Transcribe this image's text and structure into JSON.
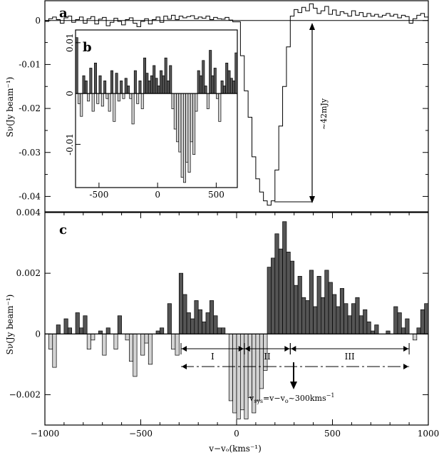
{
  "chart_data": [
    {
      "panel": "a",
      "type": "line",
      "style": "step",
      "xlim": [
        -1000,
        1000
      ],
      "ylim": [
        -0.042,
        0.004
      ],
      "yticks": [
        0,
        -0.01,
        -0.02,
        -0.03,
        -0.04
      ],
      "ytick_labels": [
        "0",
        "-0.01",
        "-0.02",
        "-0.03",
        "-0.04"
      ],
      "ylabel": "Sν(Jy beam⁻¹)",
      "x": [
        -1000,
        -980,
        -960,
        -940,
        -920,
        -900,
        -880,
        -860,
        -840,
        -820,
        -800,
        -780,
        -760,
        -740,
        -720,
        -700,
        -680,
        -660,
        -640,
        -620,
        -600,
        -580,
        -560,
        -540,
        -520,
        -500,
        -480,
        -460,
        -440,
        -420,
        -400,
        -380,
        -360,
        -340,
        -320,
        -300,
        -280,
        -260,
        -240,
        -220,
        -200,
        -180,
        -160,
        -140,
        -120,
        -100,
        -80,
        -60,
        -40,
        -20,
        0,
        20,
        40,
        60,
        80,
        100,
        120,
        140,
        160,
        180,
        200,
        220,
        240,
        260,
        280,
        300,
        320,
        340,
        360,
        380,
        400,
        420,
        440,
        460,
        480,
        500,
        520,
        540,
        560,
        580,
        600,
        620,
        640,
        660,
        680,
        700,
        720,
        740,
        760,
        780,
        800,
        820,
        840,
        860,
        880,
        900,
        920,
        940,
        960,
        980
      ],
      "y": [
        -0.0002,
        0.0004,
        0.0008,
        0.0002,
        -0.0006,
        0.0006,
        0.001,
        -0.0004,
        0.0002,
        0.0008,
        -0.0006,
        0.0004,
        0.0009,
        -0.0008,
        0.0003,
        0.0007,
        -0.0012,
        -0.0004,
        0.0005,
        -0.0002,
        -0.001,
        0.0002,
        0.0006,
        -0.0006,
        -0.0014,
        -0.0002,
        0.0004,
        -0.0008,
        0.0002,
        0.0008,
        -0.0004,
        0.001,
        0.0003,
        0.0012,
        0.0002,
        0.001,
        0.0006,
        0.0009,
        0.0011,
        0.0004,
        0.0008,
        0.0005,
        0.001,
        0.0002,
        0.0007,
        0.0004,
        0.0003,
        0.0007,
        0.0001,
        -0.0003,
        -0.0003,
        -0.008,
        -0.016,
        -0.022,
        -0.031,
        -0.036,
        -0.039,
        -0.041,
        -0.042,
        -0.041,
        -0.034,
        -0.024,
        -0.015,
        -0.006,
        0.001,
        0.0025,
        0.0018,
        0.003,
        0.0022,
        0.0038,
        0.0028,
        0.0016,
        0.0022,
        0.0032,
        0.0014,
        0.0024,
        0.0012,
        0.002,
        0.0016,
        0.001,
        0.0022,
        0.0012,
        0.0018,
        0.0009,
        0.0016,
        0.001,
        0.0014,
        0.0008,
        0.0012,
        0.0016,
        0.001,
        0.0014,
        0.0006,
        0.0012,
        0.0009,
        -0.0006,
        0.0004,
        0.0012,
        0.0016,
        0.0008
      ],
      "annotations": [
        {
          "text": "~42mJy"
        }
      ]
    },
    {
      "panel": "b",
      "type": "bar",
      "style": "step-filled",
      "xlim": [
        -700,
        680
      ],
      "ylim": [
        -0.0185,
        0.0125
      ],
      "xticks": [
        -500,
        0,
        500
      ],
      "xtick_labels": [
        "-500",
        "0",
        "500"
      ],
      "yticks": [
        0.01,
        0,
        -0.01
      ],
      "ytick_labels": [
        "0.01",
        "0",
        "-0.01"
      ],
      "x": [
        -700,
        -680,
        -660,
        -640,
        -620,
        -600,
        -580,
        -560,
        -540,
        -520,
        -500,
        -480,
        -460,
        -440,
        -420,
        -400,
        -380,
        -360,
        -340,
        -320,
        -300,
        -280,
        -260,
        -240,
        -220,
        -200,
        -180,
        -160,
        -140,
        -120,
        -100,
        -80,
        -60,
        -40,
        -20,
        0,
        20,
        40,
        60,
        80,
        100,
        120,
        140,
        160,
        180,
        200,
        220,
        240,
        260,
        280,
        300,
        320,
        340,
        360,
        380,
        400,
        420,
        440,
        460,
        480,
        500,
        520,
        540,
        560,
        580,
        600,
        620,
        640,
        660
      ],
      "y": [
        0.011,
        -0.002,
        -0.0045,
        0.0035,
        0.0025,
        -0.0015,
        0.005,
        -0.0035,
        0.006,
        -0.002,
        0.0035,
        -0.0025,
        0.0025,
        -0.001,
        -0.0035,
        0.0045,
        -0.0055,
        0.004,
        -0.0015,
        0.0025,
        -0.001,
        0.003,
        0.0015,
        -0.001,
        -0.006,
        0.0045,
        -0.002,
        0.0025,
        -0.003,
        0.007,
        0.004,
        0.0025,
        0.0035,
        0.0055,
        0.003,
        0.0015,
        0.0045,
        0.0035,
        0.007,
        0.0025,
        0.0055,
        -0.003,
        -0.007,
        -0.0095,
        -0.0115,
        -0.0165,
        -0.0175,
        -0.0135,
        -0.0155,
        -0.0095,
        -0.012,
        -0.0035,
        0.0045,
        0.0035,
        0.0065,
        0.0015,
        -0.003,
        0.0085,
        0.0035,
        0.005,
        -0.001,
        -0.0055,
        0.0025,
        0.0015,
        0.006,
        0.0045,
        0.003,
        0.0025,
        0.008
      ]
    },
    {
      "panel": "c",
      "type": "bar",
      "style": "step-filled",
      "xlim": [
        -1000,
        1000
      ],
      "ylim": [
        -0.003,
        0.004
      ],
      "xticks": [
        -1000,
        -500,
        0,
        500,
        1000
      ],
      "xtick_labels": [
        "−1000",
        "−500",
        "0",
        "500",
        "1000"
      ],
      "yticks": [
        0.004,
        0.002,
        0,
        -0.002
      ],
      "ytick_labels": [
        "0.004",
        "0.002",
        "0",
        "−0.002"
      ],
      "xlabel": "v−vₒ(kms⁻¹)",
      "ylabel": "Sν(Jy beam⁻¹)",
      "x": [
        -980,
        -960,
        -940,
        -920,
        -900,
        -880,
        -860,
        -840,
        -820,
        -800,
        -780,
        -760,
        -740,
        -720,
        -700,
        -680,
        -660,
        -640,
        -620,
        -600,
        -580,
        -560,
        -540,
        -520,
        -500,
        -480,
        -460,
        -440,
        -420,
        -400,
        -380,
        -360,
        -340,
        -320,
        -300,
        -280,
        -260,
        -240,
        -220,
        -200,
        -180,
        -160,
        -140,
        -120,
        -100,
        -80,
        -60,
        -40,
        -20,
        0,
        20,
        40,
        60,
        80,
        100,
        120,
        140,
        160,
        180,
        200,
        220,
        240,
        260,
        280,
        300,
        320,
        340,
        360,
        380,
        400,
        420,
        440,
        460,
        480,
        500,
        520,
        540,
        560,
        580,
        600,
        620,
        640,
        660,
        680,
        700,
        720,
        740,
        760,
        780,
        800,
        820,
        840,
        860,
        880,
        900,
        920,
        940,
        960,
        980
      ],
      "y": [
        -0.0005,
        -0.0011,
        0.0003,
        0.0,
        0.0005,
        0.0002,
        0.0,
        0.0007,
        0.0002,
        0.0006,
        -0.0005,
        -0.0002,
        0.0,
        0.0001,
        -0.0007,
        0.0002,
        0.0,
        -0.0005,
        0.0006,
        0.0,
        -0.0002,
        -0.0009,
        -0.0014,
        0.0,
        -0.0007,
        -0.0003,
        -0.001,
        0.0,
        0.0001,
        0.0002,
        0.0,
        0.001,
        -0.0005,
        -0.0007,
        0.002,
        0.0013,
        0.0007,
        0.0005,
        0.0011,
        0.0008,
        0.0004,
        0.0007,
        0.0011,
        0.0006,
        0.0002,
        0.0002,
        0.0,
        -0.0022,
        -0.0026,
        -0.0028,
        -0.0025,
        -0.0028,
        -0.0021,
        -0.0026,
        -0.0022,
        -0.0018,
        -0.0012,
        0.0022,
        0.0025,
        0.0033,
        0.0028,
        0.0037,
        0.0027,
        0.0024,
        0.0016,
        0.0019,
        0.0012,
        0.0011,
        0.0021,
        0.0009,
        0.0019,
        0.0012,
        0.0021,
        0.0017,
        0.0013,
        0.0009,
        0.0015,
        0.001,
        0.0006,
        0.001,
        0.0012,
        0.0006,
        0.0008,
        0.0004,
        0.0001,
        0.0003,
        0.0,
        0.0,
        0.0001,
        0.0,
        0.0009,
        0.0007,
        0.0002,
        0.0005,
        0.0,
        -0.0002,
        0.0002,
        0.0008,
        0.001
      ],
      "regions": [
        {
          "label": "I",
          "from": -290,
          "to": 40
        },
        {
          "label": "II",
          "from": 40,
          "to": 280
        },
        {
          "label": "III",
          "from": 280,
          "to": 900
        }
      ],
      "annotations": [
        {
          "text": "v_sys=v−vₒ~300kms⁻¹"
        }
      ]
    }
  ],
  "colors": {
    "positive_fill": "#555555",
    "negative_fill": "#d3d3d3",
    "line": "#000000"
  },
  "panel_labels": {
    "a": "a",
    "b": "b",
    "c": "c"
  },
  "top_axis_extra_label": "0.004",
  "amplitude_note": "~42mJy",
  "vsys_note_parts": {
    "v": "v",
    "sys": "sys",
    "eq": "=v−v",
    "o": "o",
    "rest": "~300kms",
    "exp": "−1"
  }
}
